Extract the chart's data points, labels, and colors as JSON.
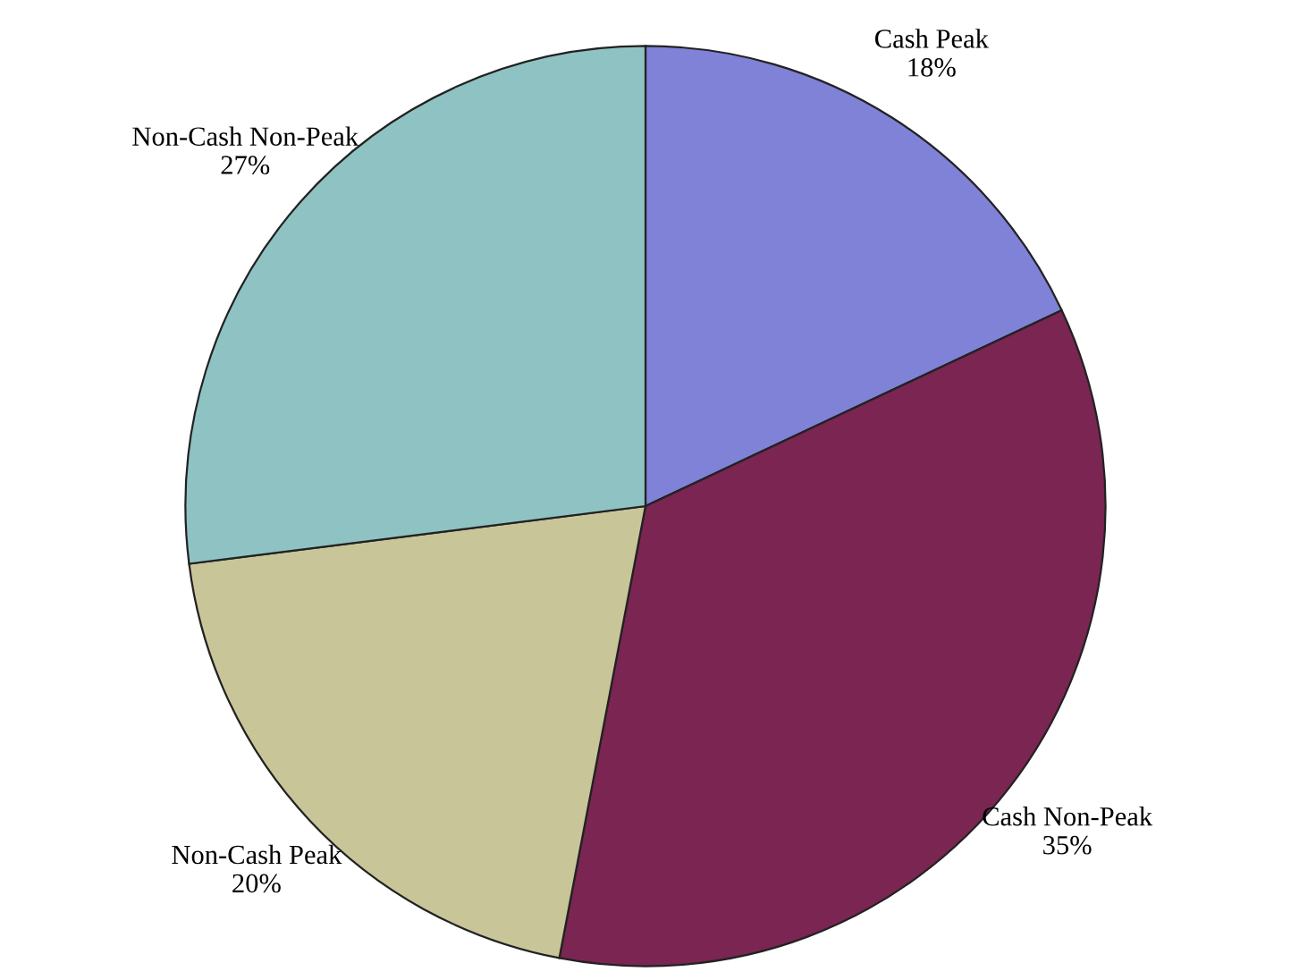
{
  "chart_data": {
    "type": "pie",
    "categories": [
      "Cash Peak",
      "Cash Non-Peak",
      "Non-Cash Peak",
      "Non-Cash Non-Peak"
    ],
    "values": [
      18,
      35,
      20,
      27
    ],
    "value_labels": [
      "18%",
      "35%",
      "20%",
      "27%"
    ],
    "colors": [
      "#7f82d6",
      "#7a2552",
      "#c8c599",
      "#8fc3c3"
    ],
    "legend": false
  }
}
